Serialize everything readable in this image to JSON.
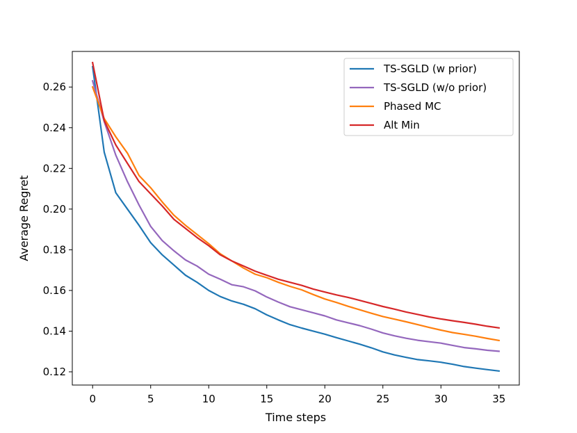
{
  "chart_data": {
    "type": "line",
    "title": "",
    "xlabel": "Time steps",
    "ylabel": "Average Regret",
    "xlim": [
      -1.75,
      36.75
    ],
    "ylim": [
      0.1135,
      0.2775
    ],
    "xticks": [
      0,
      5,
      10,
      15,
      20,
      25,
      30,
      35
    ],
    "yticks": [
      0.12,
      0.14,
      0.16,
      0.18,
      0.2,
      0.22,
      0.24,
      0.26
    ],
    "ytick_labels": [
      "0.12",
      "0.14",
      "0.16",
      "0.18",
      "0.20",
      "0.22",
      "0.24",
      "0.26"
    ],
    "legend_position": "top-right",
    "x": [
      0,
      1,
      2,
      3,
      4,
      5,
      6,
      7,
      8,
      9,
      10,
      11,
      12,
      13,
      14,
      15,
      16,
      17,
      18,
      19,
      20,
      21,
      22,
      23,
      24,
      25,
      26,
      27,
      28,
      29,
      30,
      31,
      32,
      33,
      34,
      35
    ],
    "series": [
      {
        "name": "TS-SGLD (w prior)",
        "color": "#1f77b4",
        "values": [
          0.27,
          0.228,
          0.208,
          0.2,
          0.192,
          0.1835,
          0.1775,
          0.1725,
          0.1675,
          0.164,
          0.16,
          0.157,
          0.1548,
          0.1532,
          0.151,
          0.148,
          0.1455,
          0.1432,
          0.1415,
          0.14,
          0.1385,
          0.1368,
          0.1352,
          0.1336,
          0.1318,
          0.1298,
          0.1283,
          0.1271,
          0.126,
          0.1254,
          0.1247,
          0.1237,
          0.1226,
          0.1218,
          0.1211,
          0.1204
        ]
      },
      {
        "name": "TS-SGLD (w/o prior)",
        "color": "#9467bd",
        "values": [
          0.263,
          0.243,
          0.2265,
          0.2135,
          0.202,
          0.1915,
          0.1845,
          0.1795,
          0.175,
          0.172,
          0.168,
          0.1655,
          0.1628,
          0.1618,
          0.1598,
          0.1568,
          0.1543,
          0.152,
          0.1505,
          0.149,
          0.1475,
          0.1455,
          0.1441,
          0.1427,
          0.141,
          0.1391,
          0.1377,
          0.1365,
          0.1355,
          0.1348,
          0.1341,
          0.133,
          0.1319,
          0.1313,
          0.1306,
          0.1301
        ]
      },
      {
        "name": "Phased MC",
        "color": "#ff7f0e",
        "values": [
          0.26,
          0.2445,
          0.2355,
          0.2275,
          0.2165,
          0.2105,
          0.2035,
          0.197,
          0.192,
          0.1875,
          0.183,
          0.178,
          0.1745,
          0.171,
          0.168,
          0.1663,
          0.164,
          0.162,
          0.1603,
          0.158,
          0.1558,
          0.1541,
          0.1522,
          0.1505,
          0.1488,
          0.1472,
          0.1459,
          0.1446,
          0.1432,
          0.1418,
          0.1405,
          0.1393,
          0.1384,
          0.1375,
          0.1364,
          0.1354
        ]
      },
      {
        "name": "Alt Min",
        "color": "#d62728",
        "values": [
          0.272,
          0.2435,
          0.2315,
          0.2225,
          0.2135,
          0.2075,
          0.2015,
          0.195,
          0.1905,
          0.186,
          0.182,
          0.1775,
          0.1745,
          0.172,
          0.1695,
          0.1675,
          0.1655,
          0.164,
          0.1625,
          0.1607,
          0.1592,
          0.1578,
          0.1566,
          0.1551,
          0.1536,
          0.1521,
          0.1508,
          0.1494,
          0.1482,
          0.147,
          0.146,
          0.1451,
          0.1443,
          0.1434,
          0.1424,
          0.1416
        ]
      }
    ]
  }
}
